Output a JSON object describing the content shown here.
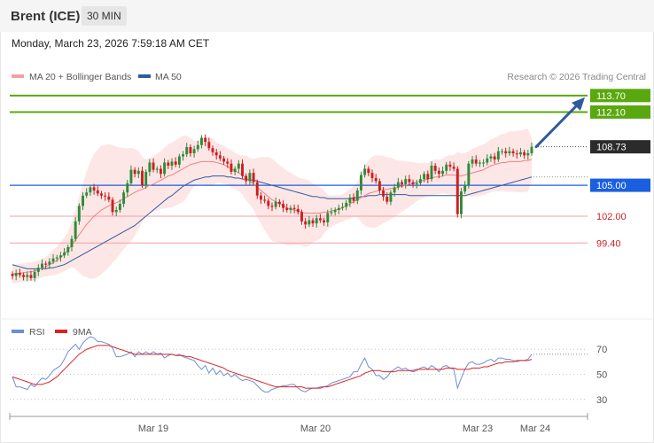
{
  "header": {
    "symbol": "Brent (ICE)",
    "timeframe": "30 MIN"
  },
  "datetime": "Monday, March 23, 2026 7:59:18 AM CET",
  "colors": {
    "bullish": "#2e8b3a",
    "bearish": "#cc1f1f",
    "ma20": "#f08080",
    "bands_fill": "#fde2e2",
    "ma50": "#2f5b9e",
    "resistance": "#5aa80f",
    "pivot": "#1a5fe0",
    "support": "#f4a0a0",
    "arrow": "#2f5b9e",
    "rsi": "#6a8fd8",
    "rsi_ma": "#e02020"
  },
  "chart_data": [
    {
      "type": "candlestick",
      "legend": [
        {
          "name": "MA 20 + Bollinger Bands",
          "color": "#f4a0a0"
        },
        {
          "name": "MA 50",
          "color": "#2f5b9e"
        }
      ],
      "legend_placement": "top-left",
      "credit": "Research © 2026 Trading Central",
      "x_ticks": [
        "Mar 19",
        "Mar 20",
        "Mar 23",
        "Mar 24"
      ],
      "price_levels": [
        {
          "label": "113.70",
          "value": 113.7,
          "kind": "resistance"
        },
        {
          "label": "112.10",
          "value": 112.1,
          "kind": "resistance"
        },
        {
          "label": "108.73",
          "value": 108.73,
          "kind": "last"
        },
        {
          "label": "105.00",
          "value": 105.0,
          "kind": "pivot"
        },
        {
          "label": "102.00",
          "value": 102.0,
          "kind": "support"
        },
        {
          "label": "99.40",
          "value": 99.4,
          "kind": "support"
        }
      ],
      "y_range": [
        95.3,
        114.2
      ],
      "close": [
        96.2,
        96.5,
        96.3,
        96.1,
        96.3,
        96.0,
        96.6,
        97.0,
        97.4,
        97.3,
        97.6,
        97.9,
        98.0,
        98.2,
        98.5,
        99.0,
        99.8,
        101.5,
        103.0,
        104.0,
        104.3,
        104.8,
        104.5,
        104.2,
        104.0,
        103.9,
        103.6,
        102.4,
        102.6,
        103.2,
        104.3,
        105.2,
        106.5,
        106.1,
        106.4,
        105.0,
        106.3,
        107.2,
        106.5,
        106.6,
        106.1,
        107.2,
        106.9,
        107.3,
        107.0,
        107.8,
        108.0,
        108.7,
        108.1,
        108.5,
        108.9,
        109.6,
        109.2,
        108.6,
        108.2,
        107.9,
        107.6,
        107.3,
        107.1,
        106.3,
        106.6,
        107.1,
        105.9,
        105.4,
        106.2,
        105.3,
        104.0,
        103.6,
        103.5,
        103.0,
        102.9,
        103.4,
        103.2,
        102.8,
        102.6,
        102.8,
        102.7,
        102.4,
        101.5,
        101.2,
        101.6,
        101.3,
        101.8,
        101.6,
        101.4,
        102.3,
        102.4,
        102.6,
        102.8,
        102.9,
        103.3,
        103.8,
        103.5,
        104.5,
        106.0,
        106.6,
        106.2,
        105.7,
        105.4,
        104.5,
        103.9,
        103.4,
        104.3,
        104.8,
        105.3,
        105.1,
        105.6,
        105.3,
        105.1,
        105.2,
        105.6,
        106.1,
        105.6,
        106.9,
        106.4,
        106.1,
        106.4,
        107.0,
        106.8,
        106.6,
        102.2,
        104.4,
        105.0,
        107.1,
        107.5,
        107.1,
        107.2,
        107.2,
        107.6,
        107.8,
        107.5,
        108.3,
        108.3,
        108.1,
        108.3,
        108.1,
        108.0,
        108.2,
        107.9,
        108.1,
        108.73
      ],
      "ma20": [
        96.4,
        96.4,
        96.5,
        96.5,
        96.6,
        96.6,
        96.7,
        96.8,
        97.0,
        97.1,
        97.3,
        97.5,
        97.7,
        98.0,
        98.3,
        98.7,
        99.2,
        99.7,
        100.2,
        100.7,
        101.2,
        101.6,
        102.0,
        102.3,
        102.6,
        102.8,
        103.0,
        103.2,
        103.3,
        103.5,
        103.7,
        103.9,
        104.1,
        104.3,
        104.5,
        104.6,
        104.8,
        105.0,
        105.1,
        105.3,
        105.5,
        105.7,
        105.9,
        106.0,
        106.2,
        106.4,
        106.6,
        106.8,
        107.0,
        107.1,
        107.2,
        107.3,
        107.3,
        107.3,
        107.3,
        107.2,
        107.1,
        107.0,
        106.8,
        106.6,
        106.4,
        106.2,
        106.0,
        105.7,
        105.4,
        105.1,
        104.8,
        104.5,
        104.2,
        103.9,
        103.6,
        103.4,
        103.2,
        103.0,
        102.8,
        102.7,
        102.6,
        102.5,
        102.4,
        102.3,
        102.3,
        102.3,
        102.3,
        102.3,
        102.4,
        102.4,
        102.5,
        102.6,
        102.7,
        102.8,
        103.0,
        103.2,
        103.4,
        103.6,
        103.8,
        104.0,
        104.2,
        104.3,
        104.4,
        104.5,
        104.6,
        104.6,
        104.7,
        104.7,
        104.8,
        104.9,
        105.0,
        105.1,
        105.2,
        105.3,
        105.4,
        105.5,
        105.6,
        105.7,
        105.8,
        105.8,
        105.9,
        106.0,
        106.0,
        106.0,
        105.9,
        105.9,
        106.0,
        106.1,
        106.2,
        106.3,
        106.4,
        106.5,
        106.7,
        106.9,
        107.0,
        107.1,
        107.2,
        107.2,
        107.3,
        107.3,
        107.3,
        107.3,
        107.4,
        107.4,
        107.5
      ],
      "ma50": [
        97.3,
        97.2,
        97.1,
        97.0,
        96.9,
        96.9,
        96.9,
        96.9,
        96.9,
        96.9,
        97.0,
        97.0,
        97.1,
        97.2,
        97.3,
        97.5,
        97.7,
        97.9,
        98.1,
        98.3,
        98.5,
        98.7,
        98.9,
        99.1,
        99.3,
        99.5,
        99.7,
        99.9,
        100.1,
        100.3,
        100.5,
        100.7,
        100.9,
        101.1,
        101.4,
        101.7,
        102.0,
        102.3,
        102.6,
        102.9,
        103.2,
        103.5,
        103.8,
        104.0,
        104.3,
        104.6,
        104.9,
        105.1,
        105.3,
        105.5,
        105.6,
        105.7,
        105.8,
        105.8,
        105.9,
        105.9,
        105.9,
        105.9,
        105.8,
        105.8,
        105.7,
        105.7,
        105.6,
        105.6,
        105.5,
        105.5,
        105.4,
        105.3,
        105.2,
        105.1,
        105.0,
        104.9,
        104.8,
        104.7,
        104.6,
        104.5,
        104.4,
        104.3,
        104.2,
        104.1,
        104.0,
        103.9,
        103.9,
        103.8,
        103.8,
        103.7,
        103.7,
        103.7,
        103.7,
        103.7,
        103.7,
        103.7,
        103.8,
        103.8,
        103.9,
        103.9,
        104.0,
        104.0,
        104.0,
        104.1,
        104.1,
        104.1,
        104.1,
        104.1,
        104.1,
        104.1,
        104.1,
        104.0,
        104.0,
        104.0,
        104.0,
        104.0,
        104.0,
        104.0,
        104.0,
        104.0,
        104.0,
        104.0,
        104.0,
        104.0,
        104.0,
        104.0,
        104.0,
        104.1,
        104.2,
        104.3,
        104.4,
        104.5,
        104.6,
        104.7,
        104.8,
        104.9,
        105.0,
        105.1,
        105.2,
        105.3,
        105.4,
        105.5,
        105.6,
        105.7,
        105.8
      ]
    },
    {
      "type": "line",
      "legend": [
        {
          "name": "RSI",
          "color": "#6a8fd8"
        },
        {
          "name": "9MA",
          "color": "#e02020"
        }
      ],
      "legend_placement": "top-left",
      "y_ticks": [
        "70",
        "50",
        "30"
      ],
      "y_range": [
        20,
        80
      ],
      "rsi": [
        48,
        40,
        40,
        39,
        38,
        42,
        40,
        44,
        47,
        46,
        49,
        53,
        55,
        57,
        62,
        68,
        71,
        74,
        70,
        75,
        78,
        80,
        79,
        76,
        76,
        75,
        74,
        71,
        64,
        64,
        65,
        66,
        68,
        64,
        68,
        66,
        68,
        66,
        68,
        66,
        67,
        63,
        65,
        66,
        65,
        66,
        64,
        63,
        62,
        61,
        57,
        54,
        57,
        51,
        55,
        50,
        53,
        49,
        51,
        48,
        50,
        47,
        45,
        46,
        45,
        44,
        41,
        38,
        36,
        36,
        38,
        39,
        40,
        41,
        41,
        42,
        42,
        39,
        37,
        36,
        38,
        39,
        39,
        40,
        40,
        41,
        43,
        44,
        45,
        46,
        47,
        48,
        52,
        52,
        58,
        63,
        56,
        54,
        49,
        49,
        46,
        48,
        52,
        54,
        56,
        54,
        55,
        53,
        52,
        53,
        55,
        56,
        54,
        57,
        55,
        52,
        56,
        57,
        55,
        54,
        39,
        47,
        54,
        59,
        60,
        58,
        58,
        59,
        61,
        62,
        60,
        63,
        63,
        62,
        62,
        61,
        60,
        61,
        61,
        62,
        66
      ],
      "ma9": [
        48,
        47,
        46,
        45,
        44,
        43,
        42,
        42,
        42,
        43,
        44,
        46,
        48,
        51,
        54,
        57,
        60,
        63,
        66,
        68,
        70,
        71,
        72,
        73,
        73,
        73,
        73,
        72,
        71,
        70,
        69,
        68,
        67,
        66,
        66,
        66,
        66,
        66,
        66,
        66,
        66,
        66,
        66,
        66,
        65,
        65,
        65,
        64,
        64,
        63,
        62,
        61,
        60,
        59,
        58,
        57,
        56,
        55,
        53,
        52,
        51,
        50,
        49,
        48,
        47,
        46,
        45,
        44,
        43,
        42,
        41,
        40,
        40,
        40,
        40,
        40,
        40,
        40,
        40,
        39,
        39,
        39,
        39,
        39,
        40,
        40,
        41,
        42,
        43,
        44,
        45,
        46,
        47,
        48,
        49,
        51,
        52,
        53,
        53,
        53,
        52,
        52,
        52,
        52,
        53,
        53,
        53,
        53,
        53,
        54,
        54,
        54,
        54,
        54,
        54,
        54,
        54,
        55,
        55,
        55,
        54,
        54,
        54,
        54,
        55,
        55,
        55,
        56,
        56,
        57,
        58,
        59,
        59,
        60,
        60,
        60,
        61,
        61,
        61,
        61,
        62
      ]
    }
  ]
}
